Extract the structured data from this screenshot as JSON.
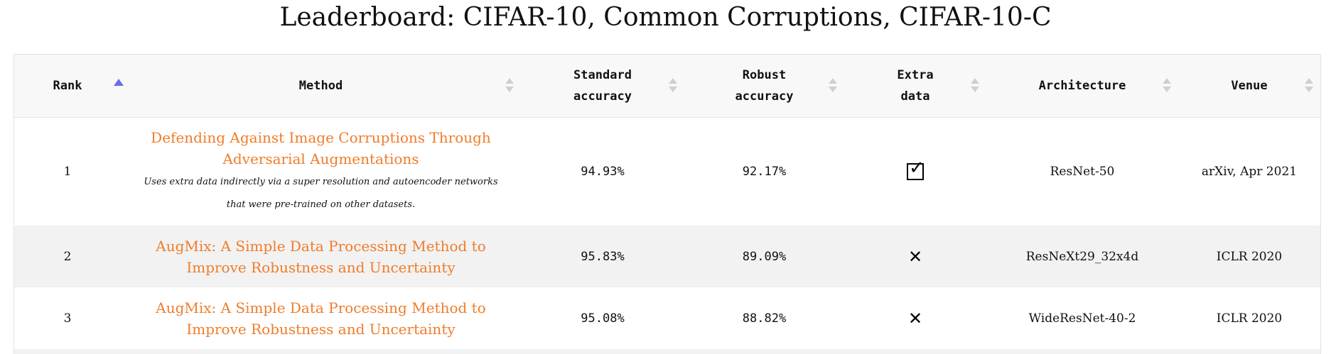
{
  "title": "Leaderboard: CIFAR-10, Common Corruptions, CIFAR-10-C",
  "columns": [
    {
      "label": "Rank"
    },
    {
      "label": "Method"
    },
    {
      "label": "Standard\naccuracy"
    },
    {
      "label": "Robust\naccuracy"
    },
    {
      "label": "Extra\ndata"
    },
    {
      "label": "Architecture"
    },
    {
      "label": "Venue"
    }
  ],
  "rows": [
    {
      "rank": "1",
      "method": "Defending Against Image Corruptions Through Adversarial Augmentations",
      "note": "Uses extra data indirectly via a super resolution and autoencoder networks that were pre-trained on other datasets.",
      "standard": "94.93%",
      "robust": "92.17%",
      "extra": "✓",
      "architecture": "ResNet-50",
      "venue": "arXiv, Apr 2021"
    },
    {
      "rank": "2",
      "method": "AugMix: A Simple Data Processing Method to Improve Robustness and Uncertainty",
      "standard": "95.83%",
      "robust": "89.09%",
      "extra": "✕",
      "architecture": "ResNeXt29_32x4d",
      "venue": "ICLR 2020"
    },
    {
      "rank": "3",
      "method": "AugMix: A Simple Data Processing Method to Improve Robustness and Uncertainty",
      "standard": "95.08%",
      "robust": "88.82%",
      "extra": "✕",
      "architecture": "WideResNet-40-2",
      "venue": "ICLR 2020"
    }
  ],
  "colors": {
    "link": "#f07c2a",
    "sort_active": "#6b6be8",
    "row_alt": "#f2f2f2",
    "header_bg": "#f8f8f8"
  }
}
